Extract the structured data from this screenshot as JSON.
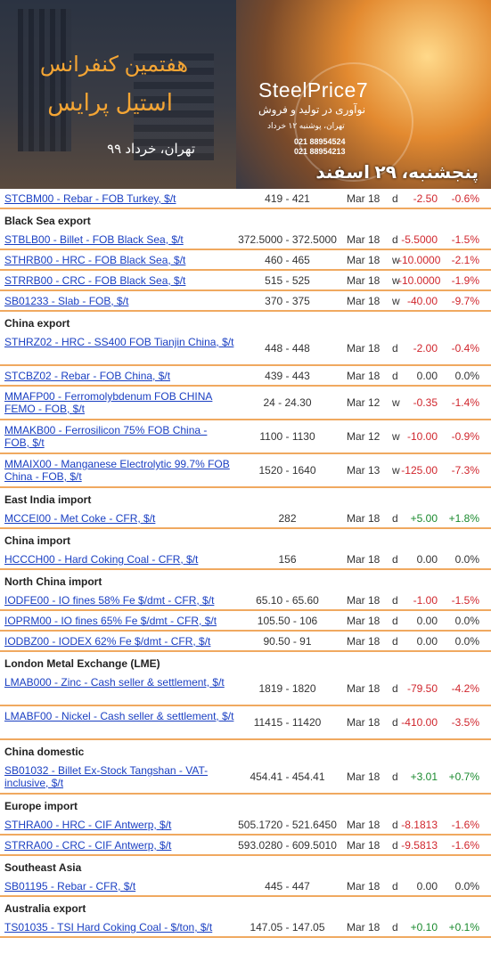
{
  "banner": {
    "title_line1": "هفتمین کنفرانس",
    "title_line2": "استیل پرایس",
    "place_date": "تهران، خرداد ۹۹",
    "brand": "SteelPrice7",
    "sub_line1": "نوآوری در تولید و فروش",
    "sub_line2": "تهران، پوشنبه ۱۲ خرداد",
    "phone1": "021 88954524",
    "phone2": "021 88954213",
    "date_overlay": "پنجشنبه، ۲۹ اسفند"
  },
  "colors": {
    "link": "#1a3fc2",
    "negative": "#d0262d",
    "positive": "#1a8a2e",
    "divider": "#f0a960"
  },
  "groups": [
    {
      "title": "",
      "rows": [
        {
          "name": "STCBM00 - Rebar - FOB Turkey, $/t",
          "range": "419 - 421",
          "date": "Mar 18",
          "period": "d",
          "change": "-2.50",
          "pct": "-0.6%",
          "dir": "neg"
        }
      ]
    },
    {
      "title": "Black Sea export",
      "rows": [
        {
          "name": "STBLB00 - Billet - FOB Black Sea, $/t",
          "range": "372.5000 - 372.5000",
          "date": "Mar 18",
          "period": "d",
          "change": "-5.5000",
          "pct": "-1.5%",
          "dir": "neg"
        },
        {
          "name": "STHRB00 - HRC - FOB Black Sea, $/t",
          "range": "460 - 465",
          "date": "Mar 18",
          "period": "w",
          "change": "-10.0000",
          "pct": "-2.1%",
          "dir": "neg"
        },
        {
          "name": "STRRB00 - CRC - FOB Black Sea, $/t",
          "range": "515 - 525",
          "date": "Mar 18",
          "period": "w",
          "change": "-10.0000",
          "pct": "-1.9%",
          "dir": "neg"
        },
        {
          "name": "SB01233 - Slab - FOB, $/t",
          "range": "370 - 375",
          "date": "Mar 18",
          "period": "w",
          "change": "-40.00",
          "pct": "-9.7%",
          "dir": "neg"
        }
      ]
    },
    {
      "title": "China export",
      "rows": [
        {
          "name": "STHRZ02 - HRC - SS400 FOB Tianjin China, $/t",
          "range": "448 - 448",
          "date": "Mar 18",
          "period": "d",
          "change": "-2.00",
          "pct": "-0.4%",
          "dir": "neg",
          "tall": true
        },
        {
          "name": "STCBZ02 - Rebar - FOB China, $/t",
          "range": "439 - 443",
          "date": "Mar 18",
          "period": "d",
          "change": "0.00",
          "pct": "0.0%",
          "dir": "zero"
        },
        {
          "name": "MMAFP00 - Ferromolybdenum FOB CHINA FEMO - FOB, $/t",
          "range": "24 - 24.30",
          "date": "Mar 12",
          "period": "w",
          "change": "-0.35",
          "pct": "-1.4%",
          "dir": "neg",
          "tall": true
        },
        {
          "name": "MMAKB00 - Ferrosilicon 75% FOB China - FOB, $/t",
          "range": "1100 - 1130",
          "date": "Mar 12",
          "period": "w",
          "change": "-10.00",
          "pct": "-0.9%",
          "dir": "neg",
          "tall": true
        },
        {
          "name": "MMAIX00 - Manganese Electrolytic 99.7% FOB China - FOB, $/t",
          "range": "1520 - 1640",
          "date": "Mar 13",
          "period": "w",
          "change": "-125.00",
          "pct": "-7.3%",
          "dir": "neg",
          "tall": true
        }
      ]
    },
    {
      "title": "East India import",
      "rows": [
        {
          "name": "MCCEI00 - Met Coke - CFR, $/t",
          "range": "282",
          "date": "Mar 18",
          "period": "d",
          "change": "+5.00",
          "pct": "+1.8%",
          "dir": "pos"
        }
      ]
    },
    {
      "title": "China import",
      "rows": [
        {
          "name": "HCCCH00 - Hard Coking Coal - CFR, $/t",
          "range": "156",
          "date": "Mar 18",
          "period": "d",
          "change": "0.00",
          "pct": "0.0%",
          "dir": "zero"
        }
      ]
    },
    {
      "title": "North China import",
      "rows": [
        {
          "name": "IODFE00 - IO fines 58% Fe $/dmt - CFR, $/t",
          "range": "65.10 - 65.60",
          "date": "Mar 18",
          "period": "d",
          "change": "-1.00",
          "pct": "-1.5%",
          "dir": "neg"
        },
        {
          "name": "IOPRM00 - IO fines 65% Fe $/dmt - CFR, $/t",
          "range": "105.50 - 106",
          "date": "Mar 18",
          "period": "d",
          "change": "0.00",
          "pct": "0.0%",
          "dir": "zero"
        },
        {
          "name": "IODBZ00 - IODEX 62% Fe $/dmt - CFR, $/t",
          "range": "90.50 - 91",
          "date": "Mar 18",
          "period": "d",
          "change": "0.00",
          "pct": "0.0%",
          "dir": "zero"
        }
      ]
    },
    {
      "title": "London Metal Exchange (LME)",
      "rows": [
        {
          "name": "LMAB000 - Zinc - Cash seller & settlement, $/t",
          "range": "1819 - 1820",
          "date": "Mar 18",
          "period": "d",
          "change": "-79.50",
          "pct": "-4.2%",
          "dir": "neg",
          "tall": true
        },
        {
          "name": "LMABF00 - Nickel - Cash seller & settlement, $/t",
          "range": "11415 - 11420",
          "date": "Mar 18",
          "period": "d",
          "change": "-410.00",
          "pct": "-3.5%",
          "dir": "neg",
          "tall": true
        }
      ]
    },
    {
      "title": "China domestic",
      "rows": [
        {
          "name": "SB01032 - Billet Ex-Stock Tangshan - VAT-inclusive, $/t",
          "range": "454.41 - 454.41",
          "date": "Mar 18",
          "period": "d",
          "change": "+3.01",
          "pct": "+0.7%",
          "dir": "pos",
          "tall": true
        }
      ]
    },
    {
      "title": "Europe import",
      "rows": [
        {
          "name": "STHRA00 - HRC - CIF Antwerp, $/t",
          "range": "505.1720 - 521.6450",
          "date": "Mar 18",
          "period": "d",
          "change": "-8.1813",
          "pct": "-1.6%",
          "dir": "neg"
        },
        {
          "name": "STRRA00 - CRC - CIF Antwerp, $/t",
          "range": "593.0280 - 609.5010",
          "date": "Mar 18",
          "period": "d",
          "change": "-9.5813",
          "pct": "-1.6%",
          "dir": "neg"
        }
      ]
    },
    {
      "title": "Southeast Asia",
      "rows": [
        {
          "name": "SB01195 - Rebar - CFR, $/t",
          "range": "445 - 447",
          "date": "Mar 18",
          "period": "d",
          "change": "0.00",
          "pct": "0.0%",
          "dir": "zero"
        }
      ]
    },
    {
      "title": "Australia export",
      "rows": [
        {
          "name": "TS01035 - TSI Hard Coking Coal - $/ton, $/t",
          "range": "147.05 - 147.05",
          "date": "Mar 18",
          "period": "d",
          "change": "+0.10",
          "pct": "+0.1%",
          "dir": "pos"
        }
      ]
    }
  ]
}
